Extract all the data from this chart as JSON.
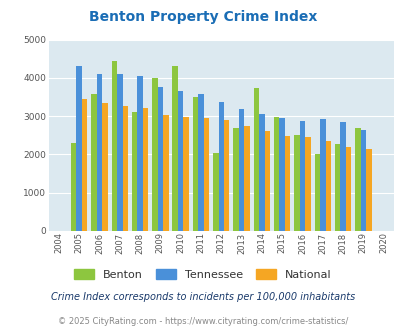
{
  "title": "Benton Property Crime Index",
  "years": [
    2004,
    2005,
    2006,
    2007,
    2008,
    2009,
    2010,
    2011,
    2012,
    2013,
    2014,
    2015,
    2016,
    2017,
    2018,
    2019,
    2020
  ],
  "benton": [
    null,
    2300,
    3570,
    4450,
    3120,
    3990,
    4310,
    3490,
    2040,
    2680,
    3740,
    2990,
    2520,
    2020,
    2270,
    2690,
    null
  ],
  "tennessee": [
    null,
    4310,
    4100,
    4090,
    4040,
    3760,
    3660,
    3590,
    3370,
    3190,
    3060,
    2950,
    2880,
    2930,
    2850,
    2640,
    null
  ],
  "national": [
    null,
    3450,
    3340,
    3260,
    3210,
    3040,
    2970,
    2950,
    2890,
    2740,
    2600,
    2490,
    2450,
    2360,
    2200,
    2130,
    null
  ],
  "benton_color": "#8dc63f",
  "tennessee_color": "#4a90d9",
  "national_color": "#f5a623",
  "bg_color": "#dce9f0",
  "ylim": [
    0,
    5000
  ],
  "yticks": [
    0,
    1000,
    2000,
    3000,
    4000,
    5000
  ],
  "subtitle": "Crime Index corresponds to incidents per 100,000 inhabitants",
  "footer": "© 2025 CityRating.com - https://www.cityrating.com/crime-statistics/",
  "title_color": "#1a6db5",
  "subtitle_color": "#1a3a6b",
  "footer_color": "#888888",
  "legend_label_color": "#333333",
  "footer_link_color": "#4a90d9"
}
